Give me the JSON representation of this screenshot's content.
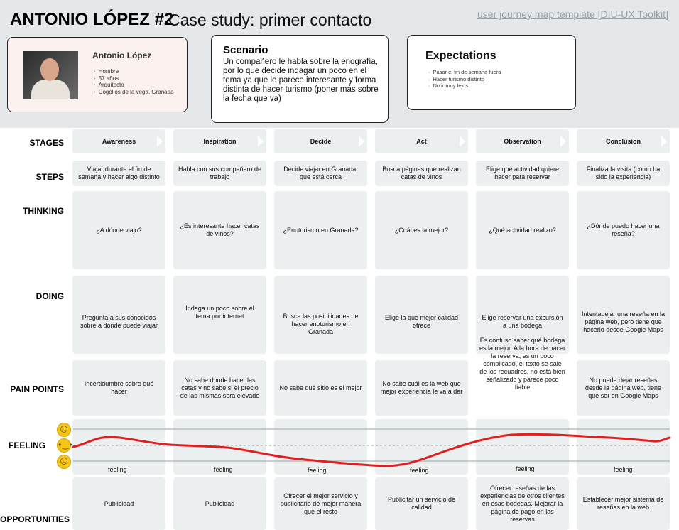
{
  "header": {
    "title": "ANTONIO LÓPEZ #2",
    "subtitle": "Case study: primer contacto",
    "template_link": "user journey map template [DIU-UX Toolkit]"
  },
  "persona": {
    "name": "Antonio López",
    "details": [
      "Hombre",
      "57 años",
      "Arquitecto",
      "Cogollos de la vega, Granada"
    ],
    "photo_icon": "persona-photo"
  },
  "scenario": {
    "title": "Scenario",
    "text": "Un compañero le habla sobre la enografía, por lo que decide indagar un poco en el tema ya que le parece interesante y forma distinta de hacer turismo (poner más sobre la fecha que va)"
  },
  "expectations": {
    "title": "Expectations",
    "items": [
      "Pasar el fin de semana fuera",
      "Hacer turismo distinto",
      "No ir muy lejos"
    ]
  },
  "labels": {
    "stages": "STAGES",
    "steps": "STEPS",
    "thinking": "THINKING",
    "doing": "DOING",
    "pain_points": "PAIN POINTS",
    "feeling": "FEELING",
    "opportunities": "OPPORTUNITIES"
  },
  "stages": [
    "Awareness",
    "Inspiration",
    "Decide",
    "Act",
    "Observation",
    "Conclusion"
  ],
  "steps": [
    "Viajar durante el fin de semana y hacer algo distinto",
    "Habla con sus compañero de trabajo",
    "Decide viajar en Granada, que está cerca",
    "Busca páginas que realizan catas de vinos",
    "Elige qué actividad quiere hacer para reservar",
    "Finaliza la visita (cómo ha sido la experiencia)"
  ],
  "thinking": [
    "¿A dónde viajo?",
    "¿Es interesante hacer catas de vinos?",
    "¿Enoturismo en Granada?",
    "¿Cuál es la mejor?",
    "¿Qué actividad realizo?",
    "¿Dónde puedo hacer una reseña?"
  ],
  "doing": [
    "Pregunta a sus conocidos sobre a dónde puede viajar",
    "Indaga un poco sobre el tema por internet",
    "Busca las posibilidades de hacer enoturismo en Granada",
    "Elige la que mejor calidad ofrece",
    "Elige reservar una excursión a una bodega",
    "Intentadejar una reseña en la página web, pero tiene que hacerlo desde Google Maps"
  ],
  "pain_points": [
    "Incertidumbre sobre qué hacer",
    "No sabe donde hacer las catas y no sabe si el precio de las mismas será elevado",
    "No sabe qué sitio es el mejor",
    "No sabe cuál es la web que mejor experiencia le va a dar",
    "Es confuso saber qué bodega es la mejor. A la hora de hacer la reserva, es un poco complicado, el texto se sale de los recuadros, no está bien señalizado y parece poco fiable",
    "No puede dejar reseñas desde la página web, tiene que ser en Google Maps"
  ],
  "feeling": {
    "labels": [
      "feeling",
      "feeling",
      "feeling",
      "feeling",
      "feeling",
      "feeling"
    ],
    "scale": {
      "happy_icon": "happy-face-icon",
      "neutral_icon": "neutral-face-icon",
      "sad_icon": "sad-face-icon"
    },
    "curve_color": "#e02020"
  },
  "opportunities": [
    "Publicidad",
    "Publicidad",
    "Ofrecer el mejor servicio y publicitarlo de mejor manera que el resto",
    "Publicitar un servicio de calidad",
    "Ofrecer reseñas de las experiencias de otros clientes en esas bodegas. Mejorar la página de pago en las reservas",
    "Establecer mejor sistema de reseñas en la web"
  ]
}
